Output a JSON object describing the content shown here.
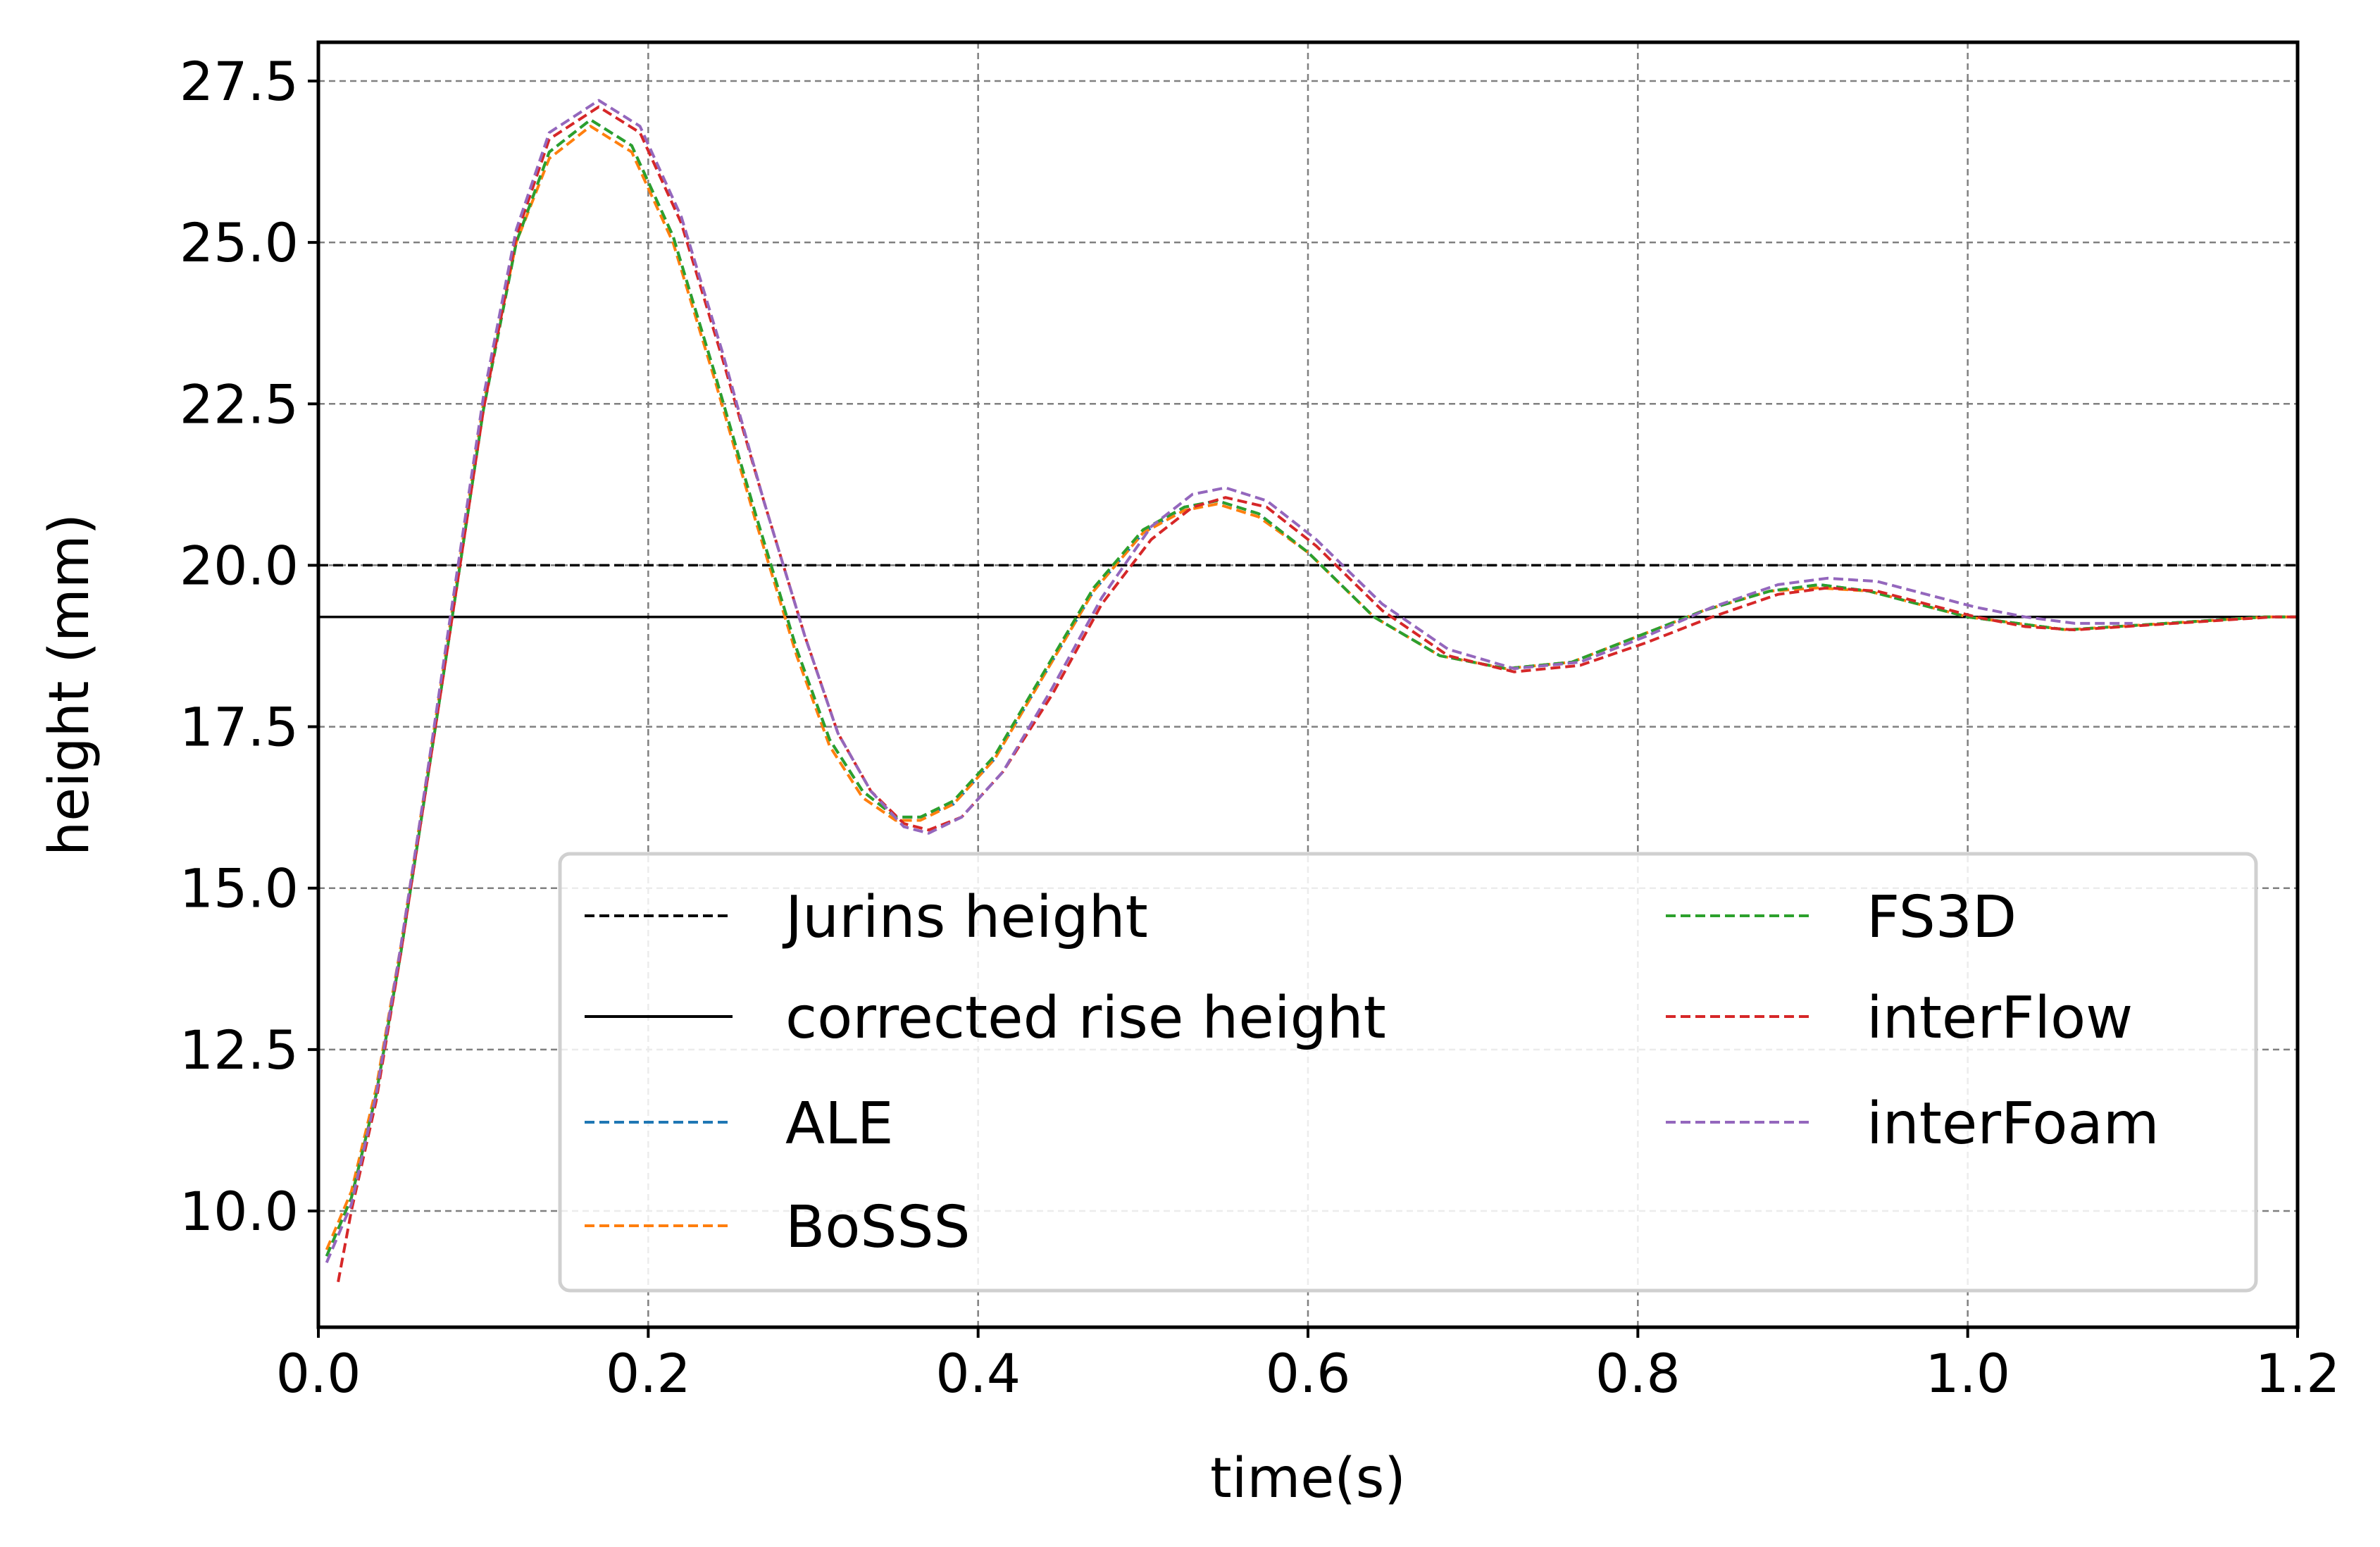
{
  "chart_data": {
    "type": "line",
    "title": "",
    "xlabel": "time(s)",
    "ylabel": "height (mm)",
    "xlim": [
      0.0,
      1.2
    ],
    "ylim": [
      8.2,
      28.1
    ],
    "xticks": [
      "0.0",
      "0.2",
      "0.4",
      "0.6",
      "0.8",
      "1.0",
      "1.2"
    ],
    "yticks": [
      "10.0",
      "12.5",
      "15.0",
      "17.5",
      "20.0",
      "22.5",
      "25.0",
      "27.5"
    ],
    "grid": true,
    "legend_position": "lower-right",
    "reference_lines": [
      {
        "name": "Jurins height",
        "y": 20.0,
        "color": "#000000",
        "style": "dashed"
      },
      {
        "name": "corrected rise height",
        "y": 19.2,
        "color": "#000000",
        "style": "solid"
      }
    ],
    "series": [
      {
        "name": "ALE",
        "color": "#1f77b4",
        "style": "dashed",
        "x": [
          0.005,
          0.02,
          0.035,
          0.05,
          0.065,
          0.08,
          0.1,
          0.12,
          0.14,
          0.165,
          0.19,
          0.215,
          0.24,
          0.265,
          0.29,
          0.31,
          0.33,
          0.35,
          0.365,
          0.385,
          0.41,
          0.44,
          0.47,
          0.5,
          0.525,
          0.545,
          0.57,
          0.6,
          0.64,
          0.68,
          0.72,
          0.76,
          0.8,
          0.84,
          0.88,
          0.91,
          0.94,
          0.97,
          1.0,
          1.03,
          1.06,
          1.09,
          1.12,
          1.15,
          1.18,
          1.2
        ],
        "y": [
          9.3,
          10.2,
          11.8,
          14.0,
          16.5,
          19.0,
          22.4,
          25.0,
          26.4,
          26.9,
          26.5,
          25.1,
          23.0,
          20.8,
          18.7,
          17.3,
          16.5,
          16.1,
          16.1,
          16.3,
          17.0,
          18.3,
          19.6,
          20.5,
          20.9,
          21.0,
          20.8,
          20.2,
          19.2,
          18.6,
          18.4,
          18.5,
          18.9,
          19.3,
          19.6,
          19.7,
          19.6,
          19.4,
          19.2,
          19.1,
          19.0,
          19.05,
          19.1,
          19.15,
          19.2,
          19.2
        ]
      },
      {
        "name": "BoSSS",
        "color": "#ff7f0e",
        "style": "dashed",
        "x": [
          0.005,
          0.02,
          0.035,
          0.05,
          0.065,
          0.08,
          0.1,
          0.12,
          0.14,
          0.165,
          0.19,
          0.215,
          0.24,
          0.265,
          0.29,
          0.31,
          0.33,
          0.35,
          0.365,
          0.385,
          0.41,
          0.44,
          0.47,
          0.5,
          0.525,
          0.545,
          0.57,
          0.6,
          0.64,
          0.68,
          0.72,
          0.76,
          0.8,
          0.84,
          0.88,
          0.91,
          0.94,
          0.97,
          1.0,
          1.03,
          1.06,
          1.09,
          1.12,
          1.15,
          1.18,
          1.2
        ],
        "y": [
          9.4,
          10.3,
          11.9,
          14.1,
          16.6,
          19.1,
          22.5,
          25.0,
          26.3,
          26.8,
          26.4,
          25.0,
          22.9,
          20.7,
          18.6,
          17.2,
          16.4,
          16.05,
          16.05,
          16.3,
          17.0,
          18.3,
          19.6,
          20.5,
          20.85,
          20.95,
          20.75,
          20.2,
          19.2,
          18.6,
          18.4,
          18.5,
          18.9,
          19.3,
          19.6,
          19.65,
          19.6,
          19.4,
          19.2,
          19.1,
          19.0,
          19.05,
          19.1,
          19.15,
          19.2,
          19.2
        ]
      },
      {
        "name": "FS3D",
        "color": "#2ca02c",
        "style": "dashed",
        "x": [
          0.005,
          0.02,
          0.035,
          0.05,
          0.065,
          0.08,
          0.1,
          0.12,
          0.14,
          0.165,
          0.19,
          0.215,
          0.24,
          0.265,
          0.29,
          0.31,
          0.33,
          0.35,
          0.365,
          0.385,
          0.41,
          0.44,
          0.47,
          0.5,
          0.525,
          0.545,
          0.57,
          0.6,
          0.64,
          0.68,
          0.72,
          0.76,
          0.8,
          0.84,
          0.88,
          0.91,
          0.94,
          0.97,
          1.0,
          1.03,
          1.06,
          1.09,
          1.12,
          1.15,
          1.18,
          1.2
        ],
        "y": [
          9.3,
          10.2,
          11.8,
          14.0,
          16.5,
          19.0,
          22.4,
          25.0,
          26.4,
          26.9,
          26.5,
          25.1,
          23.0,
          20.8,
          18.7,
          17.3,
          16.5,
          16.1,
          16.1,
          16.35,
          17.05,
          18.35,
          19.65,
          20.55,
          20.9,
          21.0,
          20.8,
          20.2,
          19.2,
          18.6,
          18.4,
          18.5,
          18.9,
          19.3,
          19.6,
          19.7,
          19.6,
          19.4,
          19.2,
          19.1,
          19.0,
          19.05,
          19.1,
          19.15,
          19.2,
          19.2
        ]
      },
      {
        "name": "interFlow",
        "color": "#d62728",
        "style": "dashed",
        "x": [
          0.012,
          0.02,
          0.035,
          0.05,
          0.065,
          0.08,
          0.1,
          0.12,
          0.14,
          0.17,
          0.195,
          0.22,
          0.245,
          0.27,
          0.295,
          0.315,
          0.335,
          0.355,
          0.37,
          0.39,
          0.415,
          0.445,
          0.475,
          0.505,
          0.53,
          0.55,
          0.575,
          0.605,
          0.645,
          0.685,
          0.725,
          0.765,
          0.805,
          0.845,
          0.885,
          0.915,
          0.945,
          0.975,
          1.005,
          1.035,
          1.065,
          1.095,
          1.125,
          1.155,
          1.185,
          1.2
        ],
        "y": [
          8.9,
          10.0,
          11.7,
          14.0,
          16.5,
          19.0,
          22.4,
          25.1,
          26.6,
          27.1,
          26.7,
          25.3,
          23.2,
          21.0,
          18.9,
          17.4,
          16.5,
          16.0,
          15.9,
          16.1,
          16.8,
          18.0,
          19.4,
          20.4,
          20.9,
          21.05,
          20.9,
          20.3,
          19.3,
          18.6,
          18.35,
          18.45,
          18.8,
          19.2,
          19.55,
          19.65,
          19.6,
          19.4,
          19.2,
          19.05,
          19.0,
          19.05,
          19.1,
          19.15,
          19.2,
          19.2
        ]
      },
      {
        "name": "interFoam",
        "color": "#9467bd",
        "style": "dashed",
        "x": [
          0.005,
          0.02,
          0.035,
          0.05,
          0.065,
          0.08,
          0.1,
          0.12,
          0.14,
          0.17,
          0.195,
          0.22,
          0.245,
          0.27,
          0.295,
          0.315,
          0.335,
          0.355,
          0.37,
          0.39,
          0.415,
          0.445,
          0.475,
          0.505,
          0.53,
          0.55,
          0.575,
          0.605,
          0.645,
          0.685,
          0.725,
          0.765,
          0.805,
          0.845,
          0.885,
          0.915,
          0.945,
          0.975,
          1.005,
          1.035,
          1.065,
          1.1
        ],
        "y": [
          9.2,
          10.1,
          11.8,
          14.1,
          16.6,
          19.2,
          22.6,
          25.2,
          26.7,
          27.2,
          26.8,
          25.4,
          23.3,
          21.0,
          18.9,
          17.4,
          16.5,
          15.95,
          15.85,
          16.1,
          16.8,
          18.1,
          19.5,
          20.6,
          21.1,
          21.2,
          21.0,
          20.4,
          19.4,
          18.7,
          18.4,
          18.5,
          18.9,
          19.35,
          19.7,
          19.8,
          19.75,
          19.55,
          19.35,
          19.2,
          19.1,
          19.1
        ]
      }
    ]
  }
}
